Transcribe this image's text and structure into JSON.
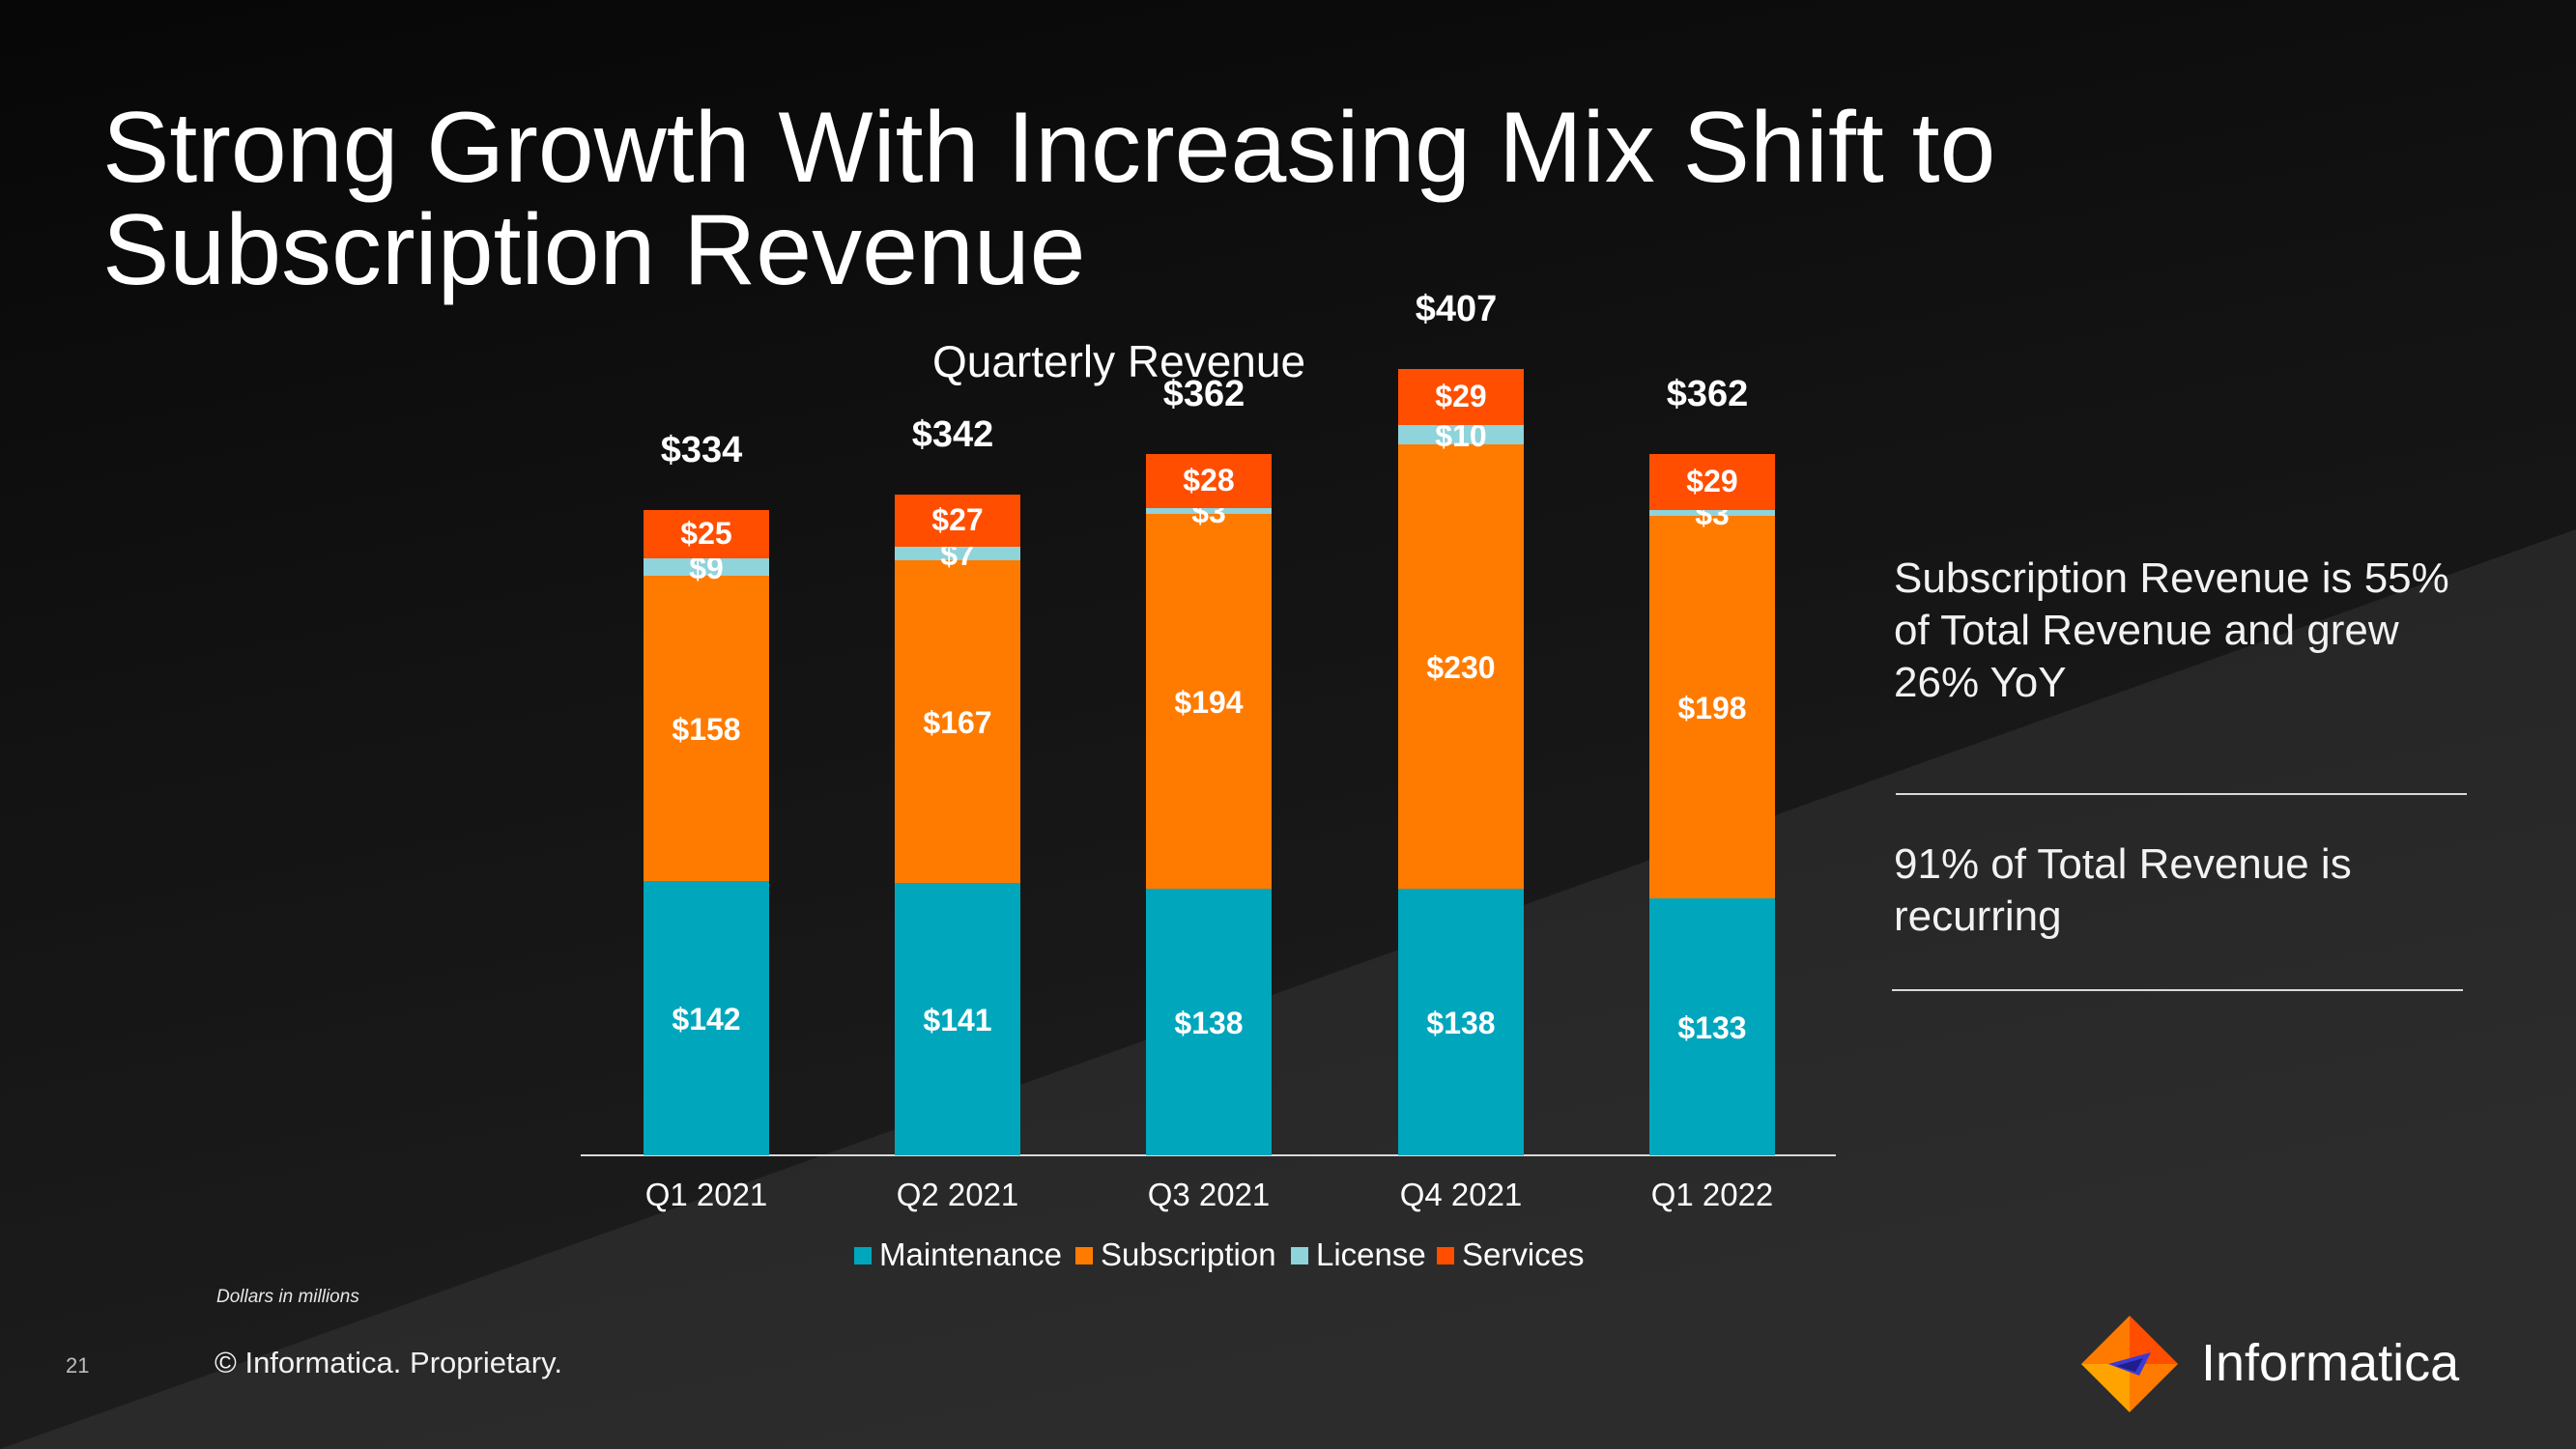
{
  "slide": {
    "title": "Strong Growth With Increasing Mix Shift to Subscription Revenue",
    "footnote": "Dollars in millions",
    "page_number": "21",
    "copyright": "© Informatica. Proprietary.",
    "logo_text": "Informatica"
  },
  "insights": [
    "Subscription Revenue is 55% of Total Revenue and grew 26% YoY",
    "91% of Total Revenue is recurring"
  ],
  "colors": {
    "maintenance": "#00A6BC",
    "subscription": "#FF7B00",
    "license": "#8FD3DB",
    "services": "#FF4E00"
  },
  "chart_data": {
    "type": "bar",
    "stacked": true,
    "title": "Quarterly Revenue",
    "xlabel": "",
    "ylabel": "",
    "ylim": [
      0,
      407
    ],
    "categories": [
      "Q1 2021",
      "Q2 2021",
      "Q3 2021",
      "Q4 2021",
      "Q1 2022"
    ],
    "series": [
      {
        "name": "Maintenance",
        "values": [
          142,
          141,
          138,
          138,
          133
        ],
        "labels": [
          "$142",
          "$141",
          "$138",
          "$138",
          "$133"
        ]
      },
      {
        "name": "Subscription",
        "values": [
          158,
          167,
          194,
          230,
          198
        ],
        "labels": [
          "$158",
          "$167",
          "$194",
          "$230",
          "$198"
        ]
      },
      {
        "name": "License",
        "values": [
          9,
          7,
          3,
          10,
          3
        ],
        "labels": [
          "$9",
          "$7",
          "$3",
          "$10",
          "$3"
        ]
      },
      {
        "name": "Services",
        "values": [
          25,
          27,
          28,
          29,
          29
        ],
        "labels": [
          "$25",
          "$27",
          "$28",
          "$29",
          "$29"
        ]
      }
    ],
    "totals": [
      334,
      342,
      362,
      407,
      362
    ],
    "total_labels": [
      "$334",
      "$342",
      "$362",
      "$407",
      "$362"
    ],
    "legend": [
      "Maintenance",
      "Subscription",
      "License",
      "Services"
    ],
    "legend_position": "bottom",
    "grid": false
  }
}
